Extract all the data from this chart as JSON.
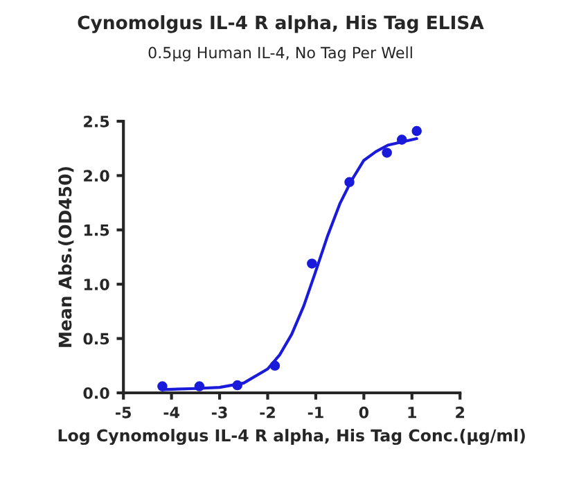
{
  "chart_data": {
    "type": "scatter",
    "title": "Cynomolgus IL-4 R alpha, His Tag ELISA",
    "subtitle": "0.5μg Human IL-4, No Tag Per Well",
    "xlabel": "Log Cynomolgus IL-4 R alpha, His Tag Conc.(μg/ml)",
    "ylabel": "Mean Abs.(OD450)",
    "xlim": [
      -5,
      2
    ],
    "xticks": [
      -5,
      -4,
      -3,
      -2,
      -1,
      0,
      1,
      2
    ],
    "ylim": [
      0,
      2.5
    ],
    "yticks": [
      {
        "value": 0,
        "label": "0.0"
      },
      {
        "value": 0.5,
        "label": "0.5"
      },
      {
        "value": 1,
        "label": "1.0"
      },
      {
        "value": 1.5,
        "label": "1.5"
      },
      {
        "value": 2,
        "label": "2.0"
      },
      {
        "value": 2.5,
        "label": "2.5"
      }
    ],
    "grid": false,
    "legend": false,
    "series": [
      {
        "color": "#1a1adb",
        "marker": "circle",
        "x": [
          -4.19,
          -3.42,
          -2.63,
          -1.85,
          -1.08,
          -0.3,
          0.48,
          0.79,
          1.1
        ],
        "values": [
          0.06,
          0.06,
          0.07,
          0.25,
          1.19,
          1.94,
          2.21,
          2.33,
          2.41
        ]
      },
      {
        "type": "line",
        "color": "#1a1adb",
        "marker": "none",
        "line_style": "solid",
        "x": [
          -4.2,
          -3.5,
          -3,
          -2.5,
          -2,
          -1.75,
          -1.5,
          -1.25,
          -1,
          -0.75,
          -0.5,
          -0.25,
          0,
          0.25,
          0.5,
          1.1
        ],
        "values": [
          0.03,
          0.04,
          0.05,
          0.09,
          0.22,
          0.35,
          0.54,
          0.8,
          1.12,
          1.45,
          1.74,
          1.96,
          2.14,
          2.22,
          2.28,
          2.34
        ]
      }
    ]
  }
}
